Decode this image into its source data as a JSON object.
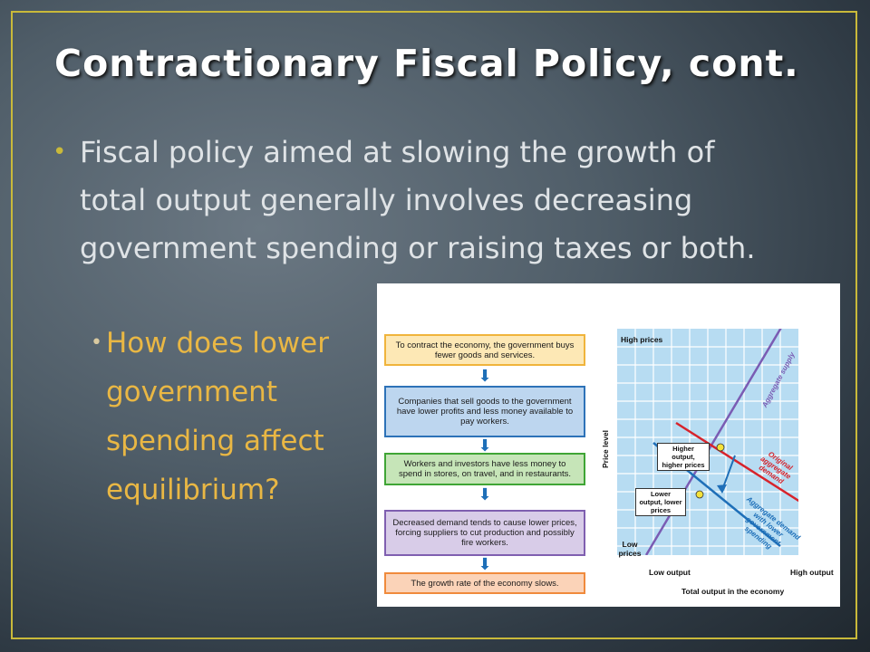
{
  "slide": {
    "title": "Contractionary Fiscal Policy, cont.",
    "bullet_main": "Fiscal policy aimed at slowing the growth of total output generally involves decreasing government spending or raising taxes or both.",
    "bullet_sub": "How does lower government spending affect equilibrium?",
    "bullet_glyph": "•"
  },
  "flowchart": {
    "steps": [
      {
        "text": "To contract the economy, the government buys fewer goods and services.",
        "fill": "#fde8b5",
        "border": "#f0b43c"
      },
      {
        "text": "Companies that sell goods to the government have lower profits and less money available to pay workers.",
        "fill": "#bdd6ef",
        "border": "#2d72b8"
      },
      {
        "text": "Workers and investors have less money to spend in stores, on travel, and in restaurants.",
        "fill": "#c6e5b8",
        "border": "#3fa535"
      },
      {
        "text": "Decreased demand tends to cause lower prices, forcing suppliers to cut production and possibly fire workers.",
        "fill": "#d8cce8",
        "border": "#7f5fb0"
      },
      {
        "text": "The growth rate of the economy slows.",
        "fill": "#fbd3b8",
        "border": "#f08a3c"
      }
    ],
    "arrow_glyph": "⬇",
    "arrow_color": "#1e6fb8"
  },
  "graph": {
    "y_high": "High prices",
    "y_low": "Low prices",
    "y_axis_label": "Price level",
    "x_low": "Low output",
    "x_high": "High output",
    "x_axis_label": "Total output in the economy",
    "supply_label": "Aggregate supply",
    "original_demand_label": "Original aggregate demand",
    "lower_demand_label": "Aggregate demand with lower government spending",
    "callout_higher": "Higher output, higher prices",
    "callout_lower": "Lower output, lower prices",
    "colors": {
      "grid_bg": "#b7dcf2",
      "grid_line": "#ffffff",
      "supply": "#7a5cb3",
      "original_demand": "#d7232b",
      "lower_demand": "#1e6fb8",
      "equilibrium": "#f5e23a",
      "frame_accent": "#c9b93a"
    }
  }
}
